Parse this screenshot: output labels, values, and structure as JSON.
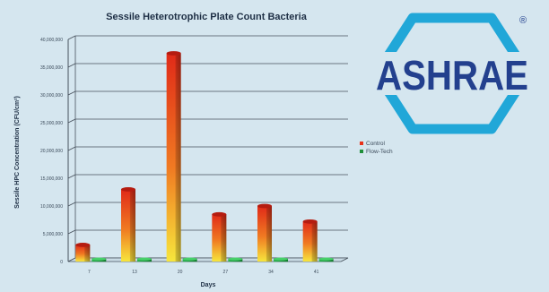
{
  "logo": {
    "text": "ASHRAE",
    "registered": "®",
    "ring_color": "#21a7d8",
    "text_color": "#23408e"
  },
  "chart_data": {
    "type": "bar",
    "title": "Sessile Heterotrophic Plate Count Bacteria",
    "xlabel": "Days",
    "ylabel": "Sessile HPC Concentration (CFU/cm²)",
    "categories": [
      "7",
      "13",
      "20",
      "27",
      "34",
      "41"
    ],
    "ylim": [
      0,
      40000000
    ],
    "yticks": [
      0,
      5000000,
      10000000,
      15000000,
      20000000,
      25000000,
      30000000,
      35000000,
      40000000
    ],
    "ytick_labels": [
      "0",
      "5,000,000",
      "10,000,000",
      "15,000,000",
      "20,000,000",
      "25,000,000",
      "30,000,000",
      "35,000,000",
      "40,000,000"
    ],
    "grid": true,
    "legend_position": "right",
    "series": [
      {
        "name": "Control",
        "values": [
          3000000,
          13000000,
          37500000,
          8500000,
          10000000,
          7200000
        ],
        "color": "#e8321a",
        "color_light": "#f4e43b"
      },
      {
        "name": "Flow-Tech",
        "values": [
          300000,
          300000,
          300000,
          300000,
          300000,
          300000
        ],
        "color": "#1f8f3a",
        "color_light": "#3fc462"
      }
    ]
  }
}
